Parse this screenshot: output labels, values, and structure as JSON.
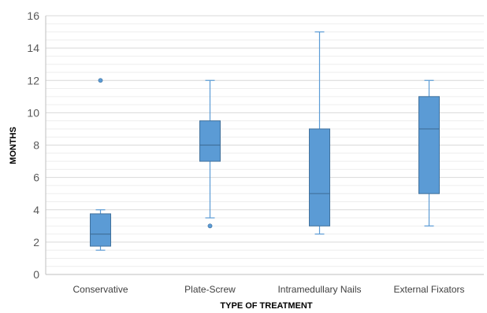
{
  "chart_data": {
    "type": "box",
    "xlabel": "TYPE OF TREATMENT",
    "ylabel": "MONTHS",
    "ylim": [
      0,
      16
    ],
    "yticks": [
      0,
      2,
      4,
      6,
      8,
      10,
      12,
      14,
      16
    ],
    "grid": true,
    "minor_grid": true,
    "legend": "none",
    "categories": [
      "Conservative",
      "Plate-Screw",
      "Intramedullary Nails",
      "External Fixators"
    ],
    "boxes": [
      {
        "category": "Conservative",
        "min": 1.5,
        "q1": 1.75,
        "median": 2.5,
        "q3": 3.75,
        "max": 4,
        "outliers": [
          12
        ]
      },
      {
        "category": "Plate-Screw",
        "min": 3.5,
        "q1": 7,
        "median": 8,
        "q3": 9.5,
        "max": 12,
        "outliers": [
          3
        ]
      },
      {
        "category": "Intramedullary Nails",
        "min": 2.5,
        "q1": 3,
        "median": 5,
        "q3": 9,
        "max": 15,
        "outliers": []
      },
      {
        "category": "External Fixators",
        "min": 3,
        "q1": 5,
        "median": 9,
        "q3": 11,
        "max": 12,
        "outliers": []
      }
    ],
    "colors": {
      "box_fill": "#5b9bd5",
      "box_stroke": "#41719c",
      "whisker": "#5b9bd5",
      "grid": "#d9d9d9",
      "axis": "#bfbfbf"
    }
  }
}
